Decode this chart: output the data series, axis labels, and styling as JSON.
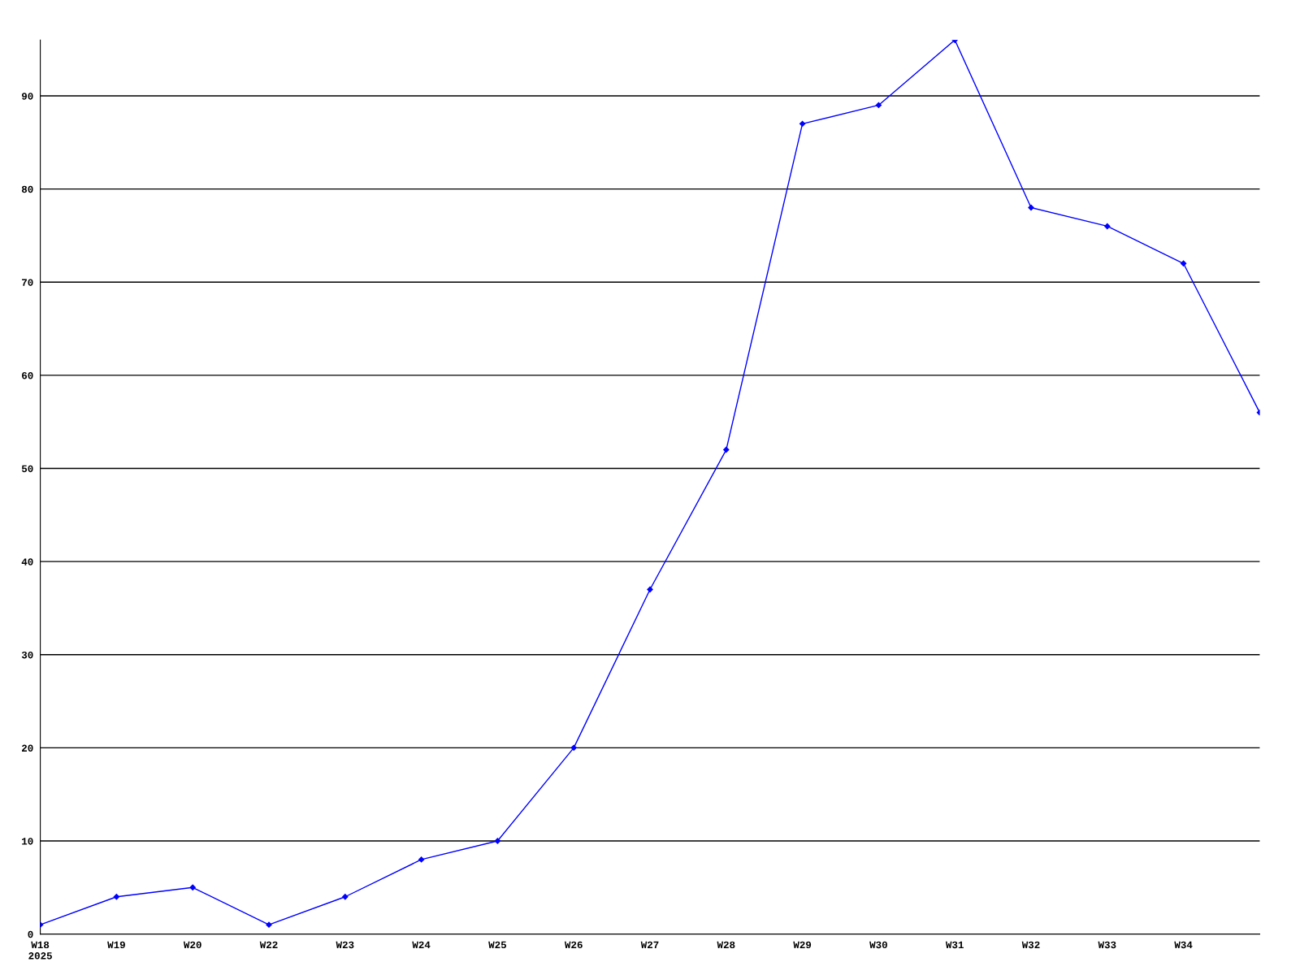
{
  "chart_data": {
    "type": "line",
    "categories": [
      "W18\n2025",
      "W19",
      "W20",
      "W22",
      "W23",
      "W24",
      "W25",
      "W26",
      "W27",
      "W28",
      "W29",
      "W30",
      "W31",
      "W32",
      "W33",
      "W34",
      null
    ],
    "series": [
      {
        "color": "#0000ff",
        "values": [
          1,
          4,
          5,
          1,
          4,
          8,
          10,
          20,
          37,
          52,
          87,
          89,
          96,
          78,
          76,
          72,
          56
        ]
      }
    ],
    "ylim": [
      0,
      96
    ],
    "yticks": [
      0,
      10,
      20,
      30,
      40,
      50,
      60,
      70,
      80,
      90
    ],
    "grid": "y",
    "marker": "diamond",
    "line_style": "solid",
    "legend": false
  }
}
